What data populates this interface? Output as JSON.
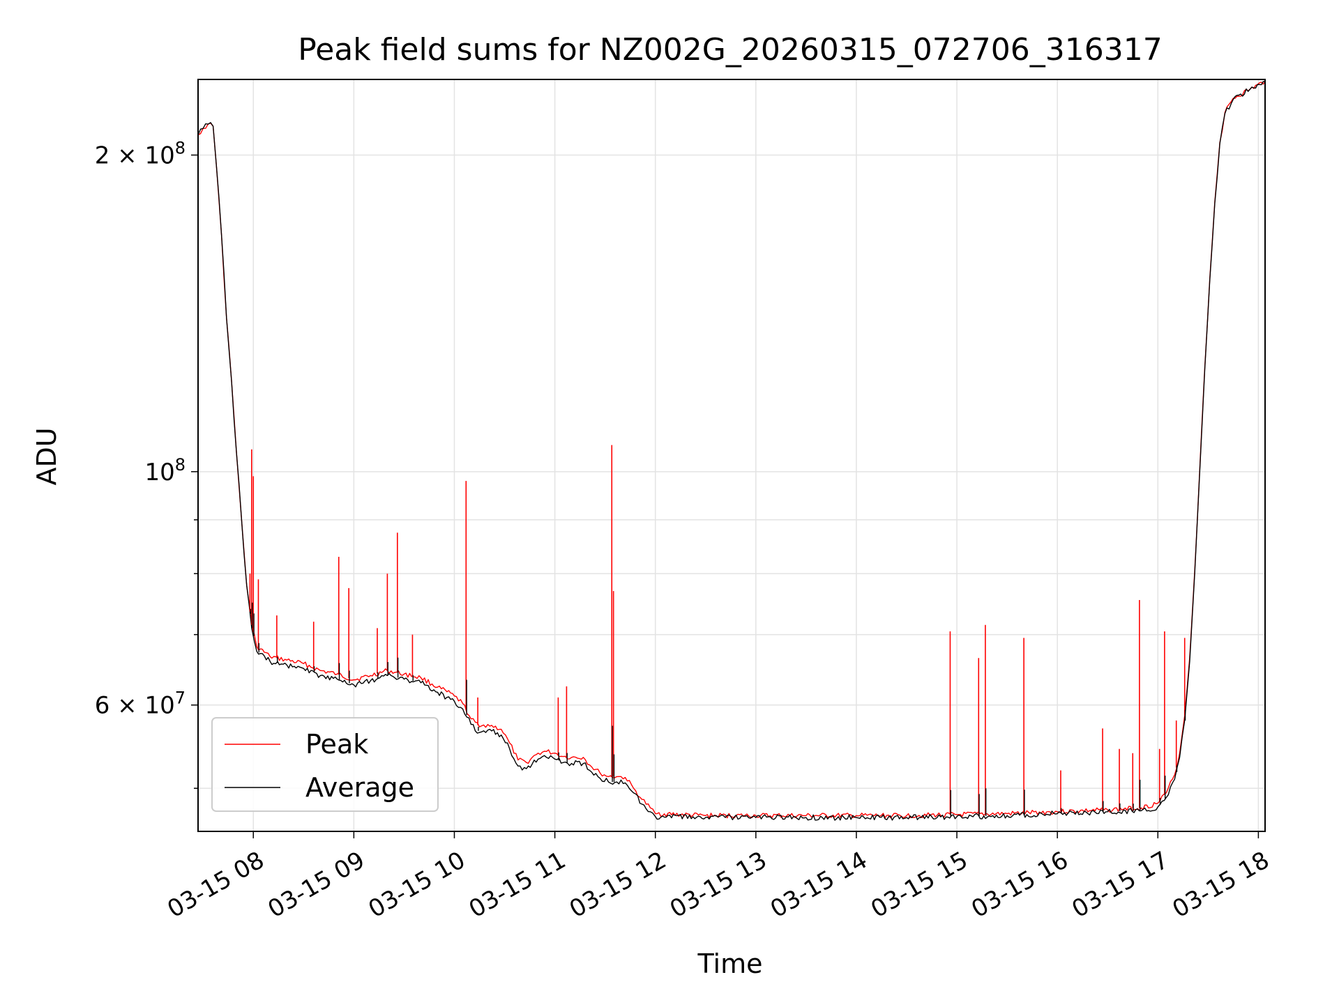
{
  "chart_data": {
    "type": "line",
    "title": "Peak field sums for NZ002G_20260315_072706_316317",
    "xlabel": "Time",
    "ylabel": "ADU",
    "x_axis": {
      "kind": "datetime",
      "range": [
        "2026-03-15 07:27",
        "2026-03-15 18:04"
      ],
      "ticks": [
        {
          "t": "2026-03-15 08:00",
          "label": "03-15 08"
        },
        {
          "t": "2026-03-15 09:00",
          "label": "03-15 09"
        },
        {
          "t": "2026-03-15 10:00",
          "label": "03-15 10"
        },
        {
          "t": "2026-03-15 11:00",
          "label": "03-15 11"
        },
        {
          "t": "2026-03-15 12:00",
          "label": "03-15 12"
        },
        {
          "t": "2026-03-15 13:00",
          "label": "03-15 13"
        },
        {
          "t": "2026-03-15 14:00",
          "label": "03-15 14"
        },
        {
          "t": "2026-03-15 15:00",
          "label": "03-15 15"
        },
        {
          "t": "2026-03-15 16:00",
          "label": "03-15 16"
        },
        {
          "t": "2026-03-15 17:00",
          "label": "03-15 17"
        },
        {
          "t": "2026-03-15 18:00",
          "label": "03-15 18"
        }
      ]
    },
    "y_axis": {
      "scale": "log",
      "range": [
        45500000,
        236000000
      ],
      "major_ticks": [
        {
          "value": 200000000,
          "label_mantissa": "2",
          "label_exponent": "8",
          "style": "sci"
        },
        {
          "value": 100000000,
          "label_mantissa": "",
          "label_exponent": "8",
          "style": "pow"
        },
        {
          "value": 60000000,
          "label_mantissa": "6",
          "label_exponent": "7",
          "style": "sci"
        }
      ],
      "minor_ticks": [
        50000000,
        70000000,
        80000000,
        90000000,
        300000000
      ]
    },
    "grid": true,
    "legend": {
      "position": "lower-left",
      "entries": [
        {
          "label": "Peak",
          "color": "#ff0000"
        },
        {
          "label": "Average",
          "color": "#000000"
        }
      ]
    },
    "series": [
      {
        "name": "Average",
        "color": "#000000",
        "points": [
          [
            "2026-03-15 07:27",
            209000000
          ],
          [
            "2026-03-15 07:30",
            212000000
          ],
          [
            "2026-03-15 07:33",
            214000000
          ],
          [
            "2026-03-15 07:36",
            213000000
          ],
          [
            "2026-03-15 07:38",
            195000000
          ],
          [
            "2026-03-15 07:41",
            168000000
          ],
          [
            "2026-03-15 07:44",
            140000000
          ],
          [
            "2026-03-15 07:47",
            122000000
          ],
          [
            "2026-03-15 07:50",
            104000000
          ],
          [
            "2026-03-15 07:53",
            90000000
          ],
          [
            "2026-03-15 07:56",
            78000000
          ],
          [
            "2026-03-15 07:59",
            71000000
          ],
          [
            "2026-03-15 08:02",
            67500000
          ],
          [
            "2026-03-15 08:10",
            66000000
          ],
          [
            "2026-03-15 08:20",
            65500000
          ],
          [
            "2026-03-15 08:30",
            65000000
          ],
          [
            "2026-03-15 08:40",
            64000000
          ],
          [
            "2026-03-15 08:50",
            63500000
          ],
          [
            "2026-03-15 09:00",
            62700000
          ],
          [
            "2026-03-15 09:10",
            63300000
          ],
          [
            "2026-03-15 09:20",
            64000000
          ],
          [
            "2026-03-15 09:30",
            63500000
          ],
          [
            "2026-03-15 09:40",
            63000000
          ],
          [
            "2026-03-15 09:50",
            61700000
          ],
          [
            "2026-03-15 10:00",
            60500000
          ],
          [
            "2026-03-15 10:05",
            59500000
          ],
          [
            "2026-03-15 10:10",
            57500000
          ],
          [
            "2026-03-15 10:15",
            56500000
          ],
          [
            "2026-03-15 10:20",
            56800000
          ],
          [
            "2026-03-15 10:28",
            56200000
          ],
          [
            "2026-03-15 10:33",
            54500000
          ],
          [
            "2026-03-15 10:38",
            52500000
          ],
          [
            "2026-03-15 10:43",
            52200000
          ],
          [
            "2026-03-15 10:50",
            53300000
          ],
          [
            "2026-03-15 10:55",
            53500000
          ],
          [
            "2026-03-15 11:00",
            53300000
          ],
          [
            "2026-03-15 11:05",
            52900000
          ],
          [
            "2026-03-15 11:10",
            52800000
          ],
          [
            "2026-03-15 11:17",
            52800000
          ],
          [
            "2026-03-15 11:22",
            51800000
          ],
          [
            "2026-03-15 11:27",
            51100000
          ],
          [
            "2026-03-15 11:32",
            50700000
          ],
          [
            "2026-03-15 11:37",
            50700000
          ],
          [
            "2026-03-15 11:42",
            50600000
          ],
          [
            "2026-03-15 11:47",
            49500000
          ],
          [
            "2026-03-15 11:52",
            48300000
          ],
          [
            "2026-03-15 11:57",
            47500000
          ],
          [
            "2026-03-15 12:00",
            47000000
          ],
          [
            "2026-03-15 12:30",
            46900000
          ],
          [
            "2026-03-15 13:00",
            46900000
          ],
          [
            "2026-03-15 13:30",
            46900000
          ],
          [
            "2026-03-15 14:00",
            46900000
          ],
          [
            "2026-03-15 14:30",
            46900000
          ],
          [
            "2026-03-15 15:00",
            47000000
          ],
          [
            "2026-03-15 15:30",
            47100000
          ],
          [
            "2026-03-15 16:00",
            47300000
          ],
          [
            "2026-03-15 16:30",
            47500000
          ],
          [
            "2026-03-15 16:50",
            47600000
          ],
          [
            "2026-03-15 17:00",
            48000000
          ],
          [
            "2026-03-15 17:05",
            49000000
          ],
          [
            "2026-03-15 17:10",
            51000000
          ],
          [
            "2026-03-15 17:13",
            53500000
          ],
          [
            "2026-03-15 17:16",
            58000000
          ],
          [
            "2026-03-15 17:19",
            66000000
          ],
          [
            "2026-03-15 17:22",
            80000000
          ],
          [
            "2026-03-15 17:25",
            100000000
          ],
          [
            "2026-03-15 17:28",
            125000000
          ],
          [
            "2026-03-15 17:31",
            152000000
          ],
          [
            "2026-03-15 17:34",
            180000000
          ],
          [
            "2026-03-15 17:37",
            205000000
          ],
          [
            "2026-03-15 17:40",
            219000000
          ],
          [
            "2026-03-15 17:45",
            226000000
          ],
          [
            "2026-03-15 17:55",
            231000000
          ],
          [
            "2026-03-15 18:04",
            235000000
          ]
        ]
      },
      {
        "name": "Peak",
        "color": "#ff0000",
        "points": [
          [
            "2026-03-15 07:27",
            209000000
          ],
          [
            "2026-03-15 07:30",
            212000000
          ],
          [
            "2026-03-15 07:33",
            214000000
          ],
          [
            "2026-03-15 07:36",
            213000000
          ],
          [
            "2026-03-15 07:38",
            195000000
          ],
          [
            "2026-03-15 07:41",
            168000000
          ],
          [
            "2026-03-15 07:44",
            140000000
          ],
          [
            "2026-03-15 07:47",
            122000000
          ],
          [
            "2026-03-15 07:50",
            104000000
          ],
          [
            "2026-03-15 07:53",
            90000000
          ],
          [
            "2026-03-15 07:56",
            78000000
          ],
          [
            "2026-03-15 07:59",
            71500000
          ],
          [
            "2026-03-15 08:02",
            68200000
          ],
          [
            "2026-03-15 08:10",
            66700000
          ],
          [
            "2026-03-15 08:20",
            66200000
          ],
          [
            "2026-03-15 08:30",
            65700000
          ],
          [
            "2026-03-15 08:40",
            64700000
          ],
          [
            "2026-03-15 08:50",
            64200000
          ],
          [
            "2026-03-15 09:00",
            63400000
          ],
          [
            "2026-03-15 09:10",
            64000000
          ],
          [
            "2026-03-15 09:20",
            64700000
          ],
          [
            "2026-03-15 09:30",
            64200000
          ],
          [
            "2026-03-15 09:40",
            63700000
          ],
          [
            "2026-03-15 09:50",
            62400000
          ],
          [
            "2026-03-15 10:00",
            61200000
          ],
          [
            "2026-03-15 10:05",
            60200000
          ],
          [
            "2026-03-15 10:10",
            58200000
          ],
          [
            "2026-03-15 10:15",
            57200000
          ],
          [
            "2026-03-15 10:20",
            57500000
          ],
          [
            "2026-03-15 10:28",
            56900000
          ],
          [
            "2026-03-15 10:33",
            55200000
          ],
          [
            "2026-03-15 10:38",
            53200000
          ],
          [
            "2026-03-15 10:43",
            52900000
          ],
          [
            "2026-03-15 10:50",
            54000000
          ],
          [
            "2026-03-15 10:55",
            54200000
          ],
          [
            "2026-03-15 11:00",
            54000000
          ],
          [
            "2026-03-15 11:05",
            53600000
          ],
          [
            "2026-03-15 11:10",
            53500000
          ],
          [
            "2026-03-15 11:17",
            53500000
          ],
          [
            "2026-03-15 11:22",
            52400000
          ],
          [
            "2026-03-15 11:27",
            51700000
          ],
          [
            "2026-03-15 11:32",
            51300000
          ],
          [
            "2026-03-15 11:37",
            51300000
          ],
          [
            "2026-03-15 11:42",
            51200000
          ],
          [
            "2026-03-15 11:47",
            50000000
          ],
          [
            "2026-03-15 11:52",
            48800000
          ],
          [
            "2026-03-15 11:57",
            47900000
          ],
          [
            "2026-03-15 12:00",
            47300000
          ],
          [
            "2026-03-15 12:30",
            47100000
          ],
          [
            "2026-03-15 13:00",
            47100000
          ],
          [
            "2026-03-15 13:30",
            47100000
          ],
          [
            "2026-03-15 14:00",
            47100000
          ],
          [
            "2026-03-15 14:30",
            47100000
          ],
          [
            "2026-03-15 15:00",
            47200000
          ],
          [
            "2026-03-15 15:30",
            47300000
          ],
          [
            "2026-03-15 16:00",
            47500000
          ],
          [
            "2026-03-15 16:30",
            47700000
          ],
          [
            "2026-03-15 16:50",
            47900000
          ],
          [
            "2026-03-15 17:00",
            48400000
          ],
          [
            "2026-03-15 17:05",
            49500000
          ],
          [
            "2026-03-15 17:10",
            51500000
          ],
          [
            "2026-03-15 17:13",
            54000000
          ],
          [
            "2026-03-15 17:16",
            58600000
          ],
          [
            "2026-03-15 17:19",
            66600000
          ],
          [
            "2026-03-15 17:22",
            80500000
          ],
          [
            "2026-03-15 17:25",
            100500000
          ],
          [
            "2026-03-15 17:28",
            125500000
          ],
          [
            "2026-03-15 17:31",
            152500000
          ],
          [
            "2026-03-15 17:34",
            180500000
          ],
          [
            "2026-03-15 17:37",
            205500000
          ],
          [
            "2026-03-15 17:40",
            219500000
          ],
          [
            "2026-03-15 17:45",
            226500000
          ],
          [
            "2026-03-15 17:55",
            231000000
          ],
          [
            "2026-03-15 18:04",
            235000000
          ]
        ],
        "spikes": [
          [
            "2026-03-15 07:58",
            80000000
          ],
          [
            "2026-03-15 07:59",
            105000000
          ],
          [
            "2026-03-15 08:00",
            99000000
          ],
          [
            "2026-03-15 08:03",
            79000000
          ],
          [
            "2026-03-15 08:14",
            73000000
          ],
          [
            "2026-03-15 08:36",
            72000000
          ],
          [
            "2026-03-15 08:51",
            83000000
          ],
          [
            "2026-03-15 08:57",
            77500000
          ],
          [
            "2026-03-15 09:14",
            71000000
          ],
          [
            "2026-03-15 09:20",
            80000000
          ],
          [
            "2026-03-15 09:26",
            87500000
          ],
          [
            "2026-03-15 09:35",
            70000000
          ],
          [
            "2026-03-15 10:07",
            98000000
          ],
          [
            "2026-03-15 10:14",
            61000000
          ],
          [
            "2026-03-15 11:02",
            61000000
          ],
          [
            "2026-03-15 11:07",
            62500000
          ],
          [
            "2026-03-15 11:34",
            106000000
          ],
          [
            "2026-03-15 11:35",
            77000000
          ],
          [
            "2026-03-15 14:56",
            70500000
          ],
          [
            "2026-03-15 15:13",
            66500000
          ],
          [
            "2026-03-15 15:17",
            71500000
          ],
          [
            "2026-03-15 15:40",
            69500000
          ],
          [
            "2026-03-15 16:02",
            52000000
          ],
          [
            "2026-03-15 16:27",
            57000000
          ],
          [
            "2026-03-15 16:37",
            54500000
          ],
          [
            "2026-03-15 16:45",
            54000000
          ],
          [
            "2026-03-15 16:49",
            75500000
          ],
          [
            "2026-03-15 17:01",
            54500000
          ],
          [
            "2026-03-15 17:04",
            70500000
          ],
          [
            "2026-03-15 17:11",
            58000000
          ],
          [
            "2026-03-15 17:16",
            69500000
          ]
        ]
      }
    ]
  }
}
